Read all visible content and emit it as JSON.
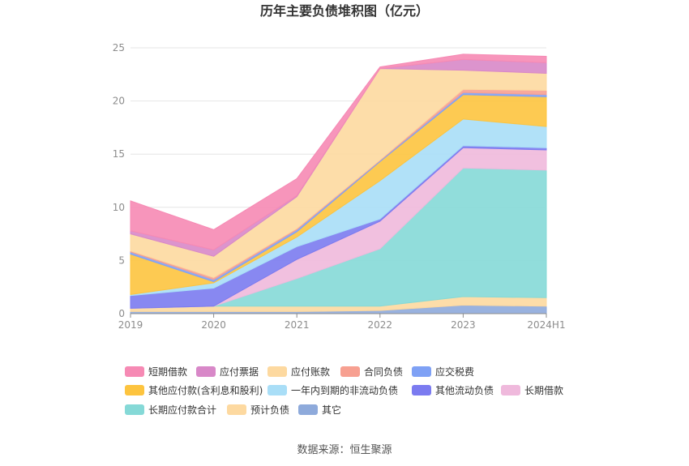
{
  "chart_data": {
    "type": "area",
    "stacked": true,
    "title": "历年主要负债堆积图（亿元）",
    "categories": [
      "2019",
      "2020",
      "2021",
      "2022",
      "2023",
      "2024H1"
    ],
    "ylim": [
      0,
      25
    ],
    "yticks": [
      "0",
      "5",
      "10",
      "15",
      "20",
      "25"
    ],
    "grid": true,
    "legend_position": "bottom",
    "series": [
      {
        "name": "其它",
        "color": "#8eaadb",
        "values": [
          0.2,
          0.2,
          0.2,
          0.3,
          0.8,
          0.7
        ]
      },
      {
        "name": "预计负债",
        "color": "#fdd9a0",
        "values": [
          0.3,
          0.5,
          0.5,
          0.4,
          0.8,
          0.8
        ]
      },
      {
        "name": "长期应付款合计",
        "color": "#85d9d7",
        "values": [
          0,
          0,
          2.6,
          5.4,
          12.1,
          12.0
        ]
      },
      {
        "name": "长期借款",
        "color": "#efb9dc",
        "values": [
          0,
          0,
          1.8,
          2.6,
          1.9,
          1.9
        ]
      },
      {
        "name": "其他流动负债",
        "color": "#7b7bf0",
        "values": [
          1.2,
          1.7,
          1.2,
          0.2,
          0.2,
          0.2
        ]
      },
      {
        "name": "一年内到期的非流动负债",
        "color": "#a9def7",
        "values": [
          0.1,
          0.5,
          0.9,
          3.6,
          2.5,
          2.0
        ]
      },
      {
        "name": "其他应付款(含利息和股利)",
        "color": "#fdc43f",
        "values": [
          3.8,
          0.1,
          0.5,
          1.8,
          2.3,
          2.8
        ]
      },
      {
        "name": "应交税费",
        "color": "#7fa1f5",
        "values": [
          0.2,
          0.2,
          0.2,
          0.1,
          0.2,
          0.2
        ]
      },
      {
        "name": "合同负债",
        "color": "#f7a091",
        "values": [
          0.1,
          0.2,
          0.1,
          0.05,
          0.3,
          0.4
        ]
      },
      {
        "name": "应付账款",
        "color": "#fdd9a0",
        "values": [
          1.6,
          2.0,
          3.0,
          8.6,
          1.8,
          1.6
        ]
      },
      {
        "name": "应付票据",
        "color": "#d888c8",
        "values": [
          0.3,
          0.6,
          0.1,
          0,
          1.0,
          1.0
        ]
      },
      {
        "name": "短期借款",
        "color": "#f68ab4",
        "values": [
          2.8,
          1.9,
          1.6,
          0.15,
          0.5,
          0.6
        ]
      }
    ],
    "legend_order": [
      "短期借款",
      "应付票据",
      "应付账款",
      "合同负债",
      "应交税费",
      "其他应付款(含利息和股利)",
      "一年内到期的非流动负债",
      "其他流动负债",
      "长期借款",
      "长期应付款合计",
      "预计负债",
      "其它"
    ]
  },
  "footer": {
    "source": "数据来源：恒生聚源"
  }
}
